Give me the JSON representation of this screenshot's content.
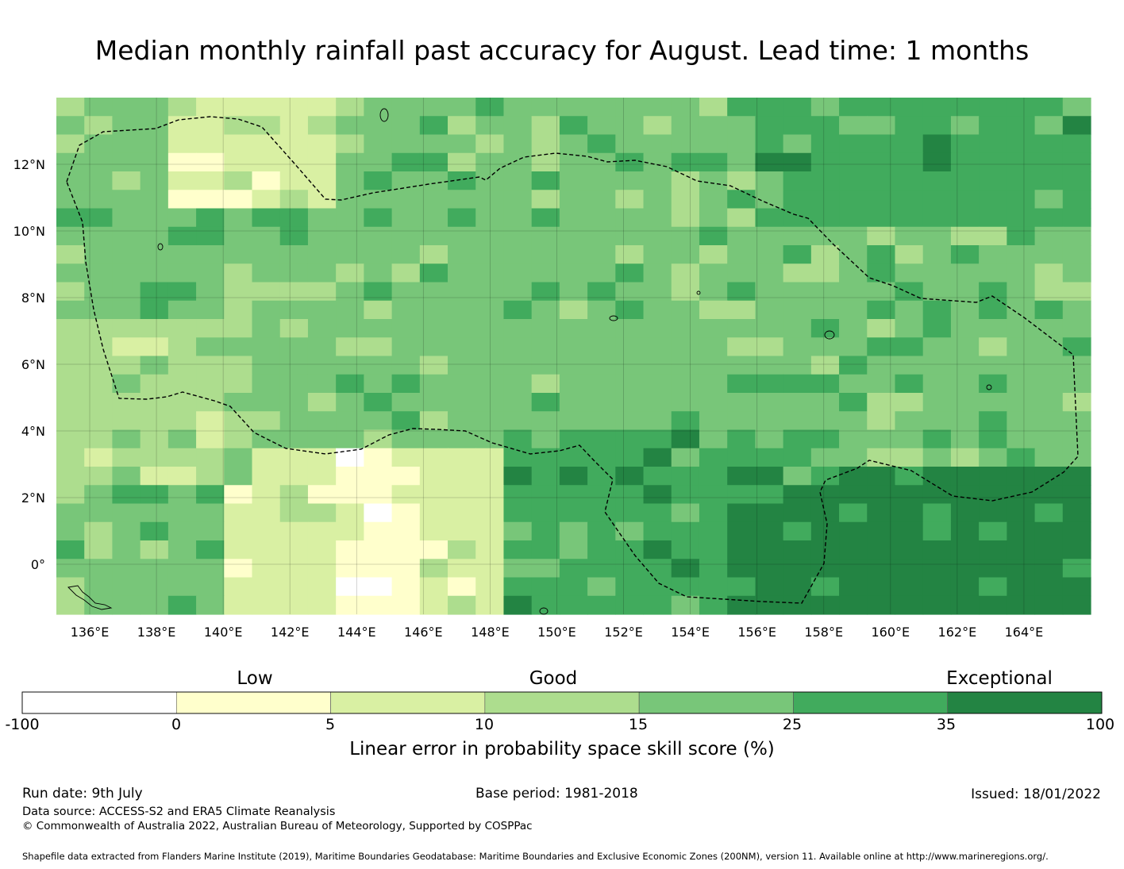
{
  "title": "Median monthly rainfall past accuracy for August. Lead time: 1 months",
  "map": {
    "lon_range": [
      135,
      166
    ],
    "lat_range": [
      -1.5,
      14
    ],
    "lon_ticks": [
      "136°E",
      "138°E",
      "140°E",
      "142°E",
      "144°E",
      "146°E",
      "148°E",
      "150°E",
      "152°E",
      "154°E",
      "156°E",
      "158°E",
      "160°E",
      "162°E",
      "164°E"
    ],
    "lat_ticks": [
      "12°N",
      "10°N",
      "8°N",
      "6°N",
      "4°N",
      "2°N",
      "0°"
    ],
    "dataset": "ACCESS-S2 linear error in probability space skill score",
    "eez_boundary": "dashed black"
  },
  "colorbar": {
    "categories": [
      "Low",
      "Good",
      "Exceptional"
    ],
    "ticks": [
      "-100",
      "0",
      "5",
      "10",
      "15",
      "25",
      "35",
      "100"
    ],
    "colors": [
      "#ffffff",
      "#ffffcc",
      "#d9f0a3",
      "#addd8e",
      "#78c679",
      "#41ab5d",
      "#238443"
    ],
    "label": "Linear error in probability space skill score (%)"
  },
  "footer": {
    "run_date": "Run date: 9th July",
    "base_period": "Base period: 1981-2018",
    "issued": "Issued: 18/01/2022",
    "data_source": "Data source: ACCESS-S2 and ERA5 Climate Reanalysis",
    "copyright": "© Commonwealth of Australia 2022, Australian Bureau of Meteorology, Supported by COSPPac",
    "shapefile": "Shapefile data extracted from Flanders Marine Institute (2019), Maritime Boundaries Geodatabase: Maritime Boundaries and Exclusive Economic Zones (200NM), version 11. Available online at http://www.marineregions.org/."
  }
}
